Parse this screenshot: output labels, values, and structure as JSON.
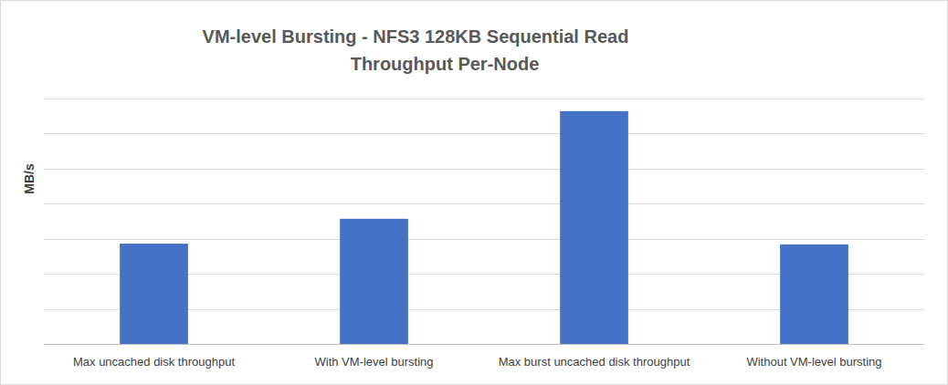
{
  "chart_data": {
    "type": "bar",
    "title": "VM-level Bursting - NFS3 128KB Sequential Read\nThroughput Per-Node",
    "y_label": "MB/s",
    "categories": [
      "Max uncached disk throughput",
      "With VM-level bursting",
      "Max burst uncached disk throughput",
      "Without VM-level bursting"
    ],
    "values": [
      286,
      357,
      664,
      284
    ],
    "color": "#4472c4",
    "ylim": [
      0,
      700
    ],
    "yticks": [
      0,
      100,
      200,
      300,
      400,
      500,
      600,
      700
    ],
    "grid": true,
    "tick_labels": "x"
  }
}
